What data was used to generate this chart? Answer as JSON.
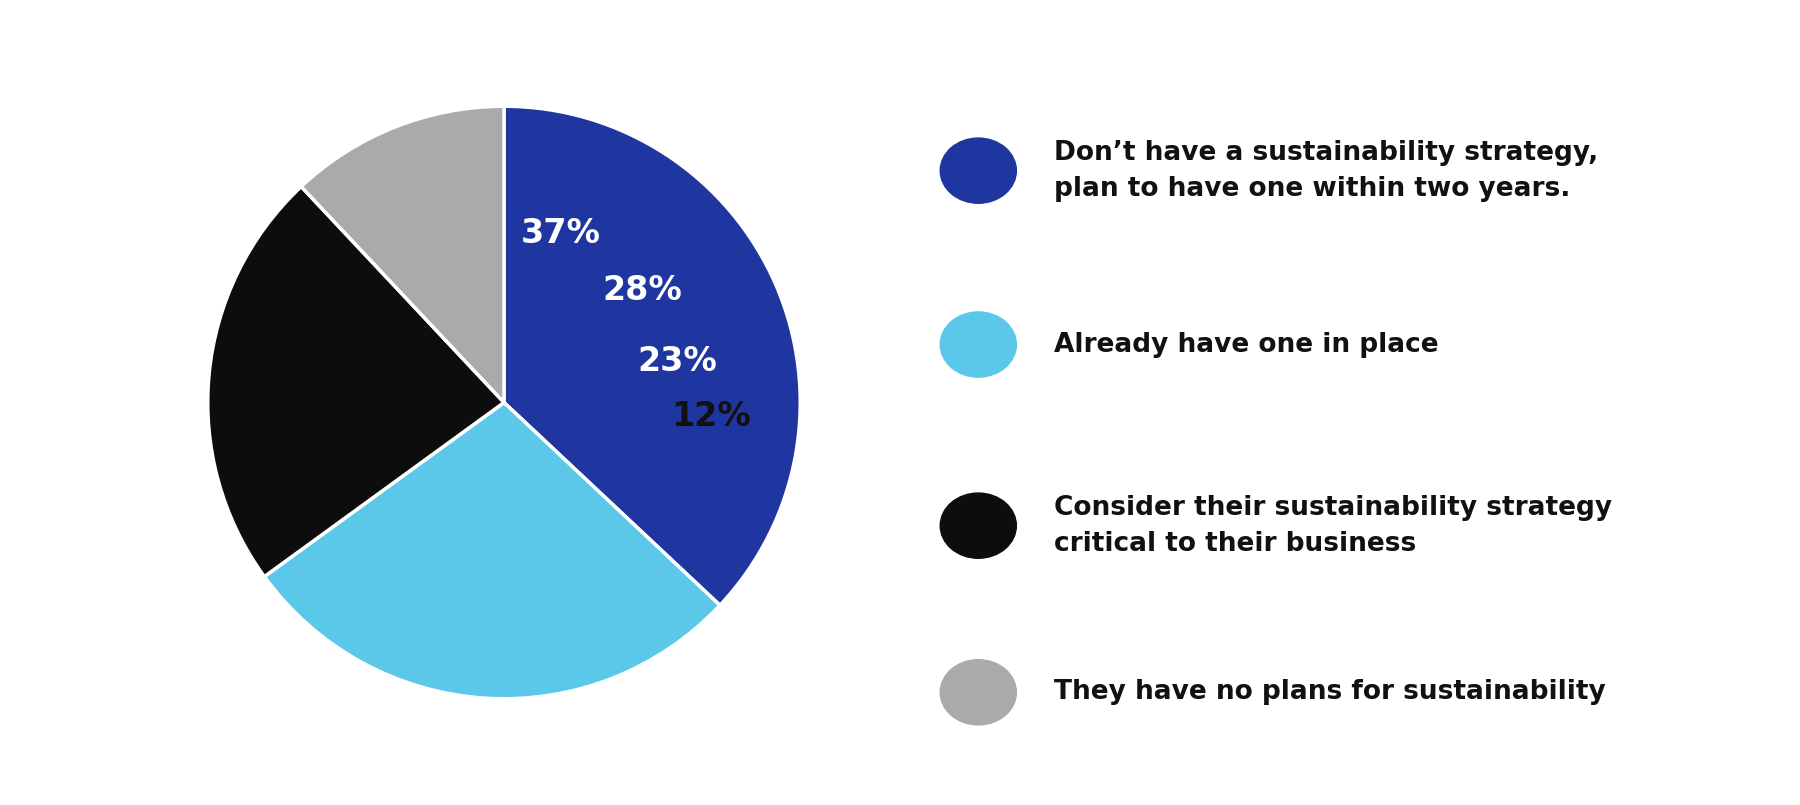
{
  "slices": [
    37,
    28,
    23,
    12
  ],
  "colors": [
    "#1f35a0",
    "#5bc8ea",
    "#0d0d0d",
    "#aaaaaa"
  ],
  "labels": [
    "37%",
    "28%",
    "23%",
    "12%"
  ],
  "label_colors": [
    "#ffffff",
    "#ffffff",
    "#ffffff",
    "#111111"
  ],
  "legend_labels": [
    "Don’t have a sustainability strategy,\nplan to have one within two years.",
    "Already have one in place",
    "Consider their sustainability strategy\ncritical to their business",
    "They have no plans for sustainability"
  ],
  "background_color": "#ffffff",
  "legend_text_color": "#111111",
  "label_fontsize": 24,
  "legend_fontsize": 19,
  "startangle": 90,
  "pct_distance": 0.6
}
